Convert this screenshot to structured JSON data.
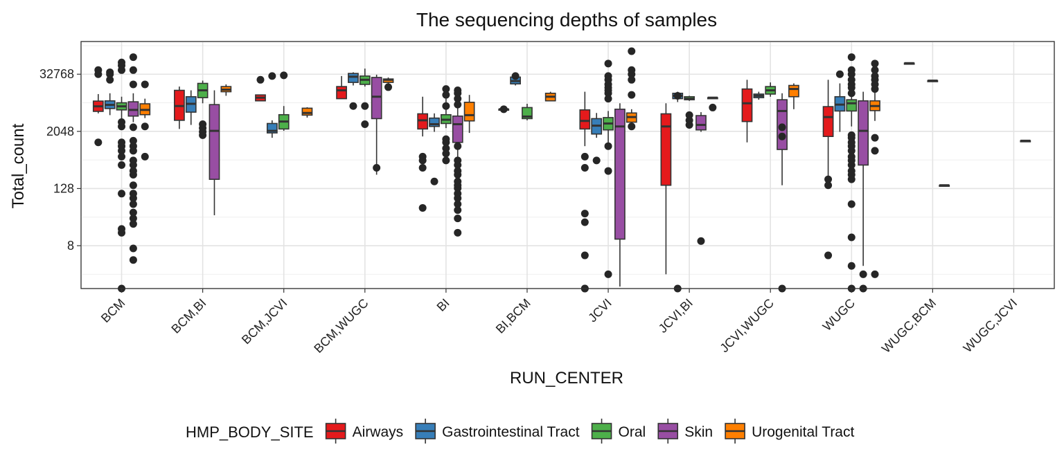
{
  "chart_data": {
    "type": "boxplot",
    "title": "The sequencing depths of samples",
    "xlabel": "RUN_CENTER",
    "ylabel": "Total_count",
    "y_scale": "log2",
    "y_ticks": [
      8,
      128,
      2048,
      32768
    ],
    "y_tick_labels": [
      "8",
      "128",
      "2048",
      "32768"
    ],
    "ylim": [
      1,
      160000
    ],
    "grid": true,
    "legend_position": "bottom",
    "legend": {
      "title": "HMP_BODY_SITE",
      "items": [
        {
          "name": "Airways",
          "color": "#e41a1c"
        },
        {
          "name": "Gastrointestinal Tract",
          "color": "#377eb8"
        },
        {
          "name": "Oral",
          "color": "#4daf4a"
        },
        {
          "name": "Skin",
          "color": "#984ea3"
        },
        {
          "name": "Urogenital Tract",
          "color": "#ff7f00"
        }
      ]
    },
    "categories": [
      "BCM",
      "BCM,BI",
      "BCM,JCVI",
      "BCM,WUGC",
      "BI",
      "BI,BCM",
      "JCVI",
      "JCVI,BI",
      "JCVI,WUGC",
      "WUGC",
      "WUGC,BCM",
      "WUGC,JCVI"
    ],
    "groups": [
      {
        "category": "BCM",
        "boxes": [
          {
            "site": "Airways",
            "min": 4900,
            "q1": 5400,
            "median": 6900,
            "q3": 8900,
            "max": 12500,
            "outliers": [
              1200,
              32768,
              40000
            ]
          },
          {
            "site": "Gastrointestinal Tract",
            "min": 4500,
            "q1": 6200,
            "median": 7400,
            "q3": 9000,
            "max": 13000,
            "outliers": [
              25000,
              32768,
              36000
            ]
          },
          {
            "site": "Oral",
            "min": 3800,
            "q1": 5800,
            "median": 6900,
            "q3": 8200,
            "max": 11000,
            "outliers": [
              1,
              15,
              18,
              100,
              400,
              600,
              800,
              1000,
              1200,
              2600,
              3200,
              40000,
              50000,
              58000
            ]
          },
          {
            "site": "Skin",
            "min": 3200,
            "q1": 4300,
            "median": 5800,
            "q3": 8600,
            "max": 13000,
            "outliers": [
              4,
              7,
              23,
              30,
              40,
              60,
              80,
              100,
              150,
              250,
              300,
              400,
              500,
              800,
              1000,
              1300,
              2500,
              20000,
              40000,
              75000
            ]
          },
          {
            "site": "Urogenital Tract",
            "min": 3900,
            "q1": 4600,
            "median": 5800,
            "q3": 7800,
            "max": 10000,
            "outliers": [
              600,
              2600,
              20000
            ]
          }
        ]
      },
      {
        "category": "BCM,BI",
        "boxes": [
          {
            "site": "Airways",
            "min": 2300,
            "q1": 3500,
            "median": 7000,
            "q3": 15000,
            "max": 18000,
            "outliers": []
          },
          {
            "site": "Gastrointestinal Tract",
            "min": 2800,
            "q1": 5200,
            "median": 7800,
            "q3": 11000,
            "max": 15000,
            "outliers": []
          },
          {
            "site": "Oral",
            "min": 8000,
            "q1": 10500,
            "median": 15000,
            "q3": 21000,
            "max": 24000,
            "outliers": [
              1700,
              2000,
              2400,
              2900
            ]
          },
          {
            "site": "Skin",
            "min": 35,
            "q1": 200,
            "median": 2100,
            "q3": 7500,
            "max": 15000,
            "outliers": []
          },
          {
            "site": "Urogenital Tract",
            "min": 11500,
            "q1": 14000,
            "median": 15500,
            "q3": 18000,
            "max": 20000,
            "outliers": []
          }
        ]
      },
      {
        "category": "BCM,JCVI",
        "boxes": [
          {
            "site": "Airways",
            "min": 9000,
            "q1": 9000,
            "median": 10500,
            "q3": 12000,
            "max": 12000,
            "outliers": [
              25000
            ]
          },
          {
            "site": "Gastrointestinal Tract",
            "min": 1500,
            "q1": 1900,
            "median": 2100,
            "q3": 3000,
            "max": 3500,
            "outliers": [
              30000
            ]
          },
          {
            "site": "Oral",
            "min": 2100,
            "q1": 2300,
            "median": 3300,
            "q3": 4600,
            "max": 7000,
            "outliers": [
              31000
            ]
          },
          {
            "site": "Urogenital Tract",
            "min": 4000,
            "q1": 4500,
            "median": 5000,
            "q3": 6300,
            "max": 6600,
            "outliers": []
          }
        ]
      },
      {
        "category": "BCM,WUGC",
        "boxes": [
          {
            "site": "Airways",
            "min": 10000,
            "q1": 10000,
            "median": 15000,
            "q3": 18000,
            "max": 30000,
            "outliers": []
          },
          {
            "site": "Gastrointestinal Tract",
            "min": 19000,
            "q1": 22000,
            "median": 29000,
            "q3": 34000,
            "max": 36000,
            "outliers": [
              7000
            ]
          },
          {
            "site": "Oral",
            "min": 18000,
            "q1": 20000,
            "median": 25000,
            "q3": 30000,
            "max": 43000,
            "outliers": [
              2900,
              7000
            ]
          },
          {
            "site": "Skin",
            "min": 250,
            "q1": 3800,
            "median": 11000,
            "q3": 28000,
            "max": 32000,
            "outliers": [
              350
            ]
          },
          {
            "site": "Urogenital Tract",
            "min": 20000,
            "q1": 22000,
            "median": 25000,
            "q3": 26000,
            "max": 28000,
            "outliers": [
              17500
            ]
          }
        ]
      },
      {
        "category": "BI",
        "boxes": [
          {
            "site": "Airways",
            "min": 1600,
            "q1": 2300,
            "median": 3500,
            "q3": 4800,
            "max": 11000,
            "outliers": [
              50,
              350,
              500,
              600
            ]
          },
          {
            "site": "Gastrointestinal Tract",
            "min": 2000,
            "q1": 2600,
            "median": 2900,
            "q3": 3900,
            "max": 4900,
            "outliers": [
              180
            ]
          },
          {
            "site": "Oral",
            "min": 2400,
            "q1": 3000,
            "median": 3600,
            "q3": 4600,
            "max": 10000,
            "outliers": [
              500,
              700,
              900,
              1200,
              1400,
              7000,
              12000,
              16000
            ]
          },
          {
            "site": "Skin",
            "min": 200,
            "q1": 1200,
            "median": 2900,
            "q3": 4300,
            "max": 7000,
            "outliers": [
              15,
              30,
              45,
              60,
              80,
              100,
              130,
              150,
              180,
              250,
              300,
              400,
              500,
              1000,
              7500,
              10000,
              13000,
              15000
            ]
          },
          {
            "site": "Urogenital Tract",
            "min": 1900,
            "q1": 3400,
            "median": 4500,
            "q3": 8400,
            "max": 12000,
            "outliers": []
          }
        ]
      },
      {
        "category": "BI,BCM",
        "boxes": [
          {
            "site": "Airways",
            "min": 6000,
            "q1": 6000,
            "median": 6000,
            "q3": 6000,
            "max": 6000,
            "outliers": [
              6000
            ]
          },
          {
            "site": "Gastrointestinal Tract",
            "min": 19000,
            "q1": 20500,
            "median": 23500,
            "q3": 28500,
            "max": 36000,
            "outliers": [
              30000
            ]
          },
          {
            "site": "Oral",
            "min": 3500,
            "q1": 3800,
            "median": 4200,
            "q3": 6500,
            "max": 7800,
            "outliers": []
          },
          {
            "site": "Urogenital Tract",
            "min": 8800,
            "q1": 9000,
            "median": 11000,
            "q3": 13000,
            "max": 14000,
            "outliers": []
          }
        ]
      },
      {
        "category": "JCVI",
        "boxes": [
          {
            "site": "Airways",
            "min": 1000,
            "q1": 2300,
            "median": 3400,
            "q3": 5800,
            "max": 14000,
            "outliers": [
              1,
              1,
              5,
              25,
              38,
              350,
              600
            ]
          },
          {
            "site": "Gastrointestinal Tract",
            "min": 1500,
            "q1": 1800,
            "median": 2700,
            "q3": 3800,
            "max": 5000,
            "outliers": [
              500
            ]
          },
          {
            "site": "Oral",
            "min": 1000,
            "q1": 2200,
            "median": 3000,
            "q3": 4000,
            "max": 5500,
            "outliers": [
              2,
              300,
              1000,
              10000,
              13000,
              15000,
              17000,
              20000,
              25000,
              30000,
              55000
            ]
          },
          {
            "site": "Skin",
            "min": 1.1,
            "q1": 11,
            "median": 2600,
            "q3": 6000,
            "max": 8000,
            "outliers": []
          },
          {
            "site": "Urogenital Tract",
            "min": 2900,
            "q1": 3200,
            "median": 4100,
            "q3": 5000,
            "max": 6000,
            "outliers": [
              2600,
              12000,
              25000,
              32768,
              40000,
              100000
            ]
          }
        ]
      },
      {
        "category": "JCVI,BI",
        "boxes": [
          {
            "site": "Airways",
            "min": 2,
            "q1": 150,
            "median": 2600,
            "q3": 4800,
            "max": 8000,
            "outliers": []
          },
          {
            "site": "Gastrointestinal Tract",
            "min": 8500,
            "q1": 10000,
            "median": 11500,
            "q3": 13000,
            "max": 14000,
            "outliers": [
              1,
              11500
            ]
          },
          {
            "site": "Oral",
            "min": 9000,
            "q1": 9500,
            "median": 10000,
            "q3": 11000,
            "max": 11500,
            "outliers": [
              2800,
              3500,
              4500
            ]
          },
          {
            "site": "Skin",
            "min": 2000,
            "q1": 2200,
            "median": 2800,
            "q3": 4400,
            "max": 5200,
            "outliers": [
              10
            ]
          },
          {
            "site": "Urogenital Tract",
            "min": 10500,
            "q1": 10500,
            "median": 10500,
            "q3": 10500,
            "max": 10500,
            "outliers": [
              6500
            ]
          }
        ]
      },
      {
        "category": "JCVI,WUGC",
        "boxes": [
          {
            "site": "Airways",
            "min": 1200,
            "q1": 3300,
            "median": 8000,
            "q3": 16000,
            "max": 25000,
            "outliers": []
          },
          {
            "site": "Gastrointestinal Tract",
            "min": 9500,
            "q1": 10500,
            "median": 11500,
            "q3": 12500,
            "max": 14000,
            "outliers": []
          },
          {
            "site": "Oral",
            "min": 11000,
            "q1": 12500,
            "median": 15000,
            "q3": 18000,
            "max": 22000,
            "outliers": []
          },
          {
            "site": "Skin",
            "min": 150,
            "q1": 850,
            "median": 5500,
            "q3": 9500,
            "max": 13000,
            "outliers": [
              1,
              1600,
              2500
            ]
          },
          {
            "site": "Urogenital Tract",
            "min": 6000,
            "q1": 11000,
            "median": 16000,
            "q3": 19000,
            "max": 21000,
            "outliers": []
          }
        ]
      },
      {
        "category": "WUGC",
        "boxes": [
          {
            "site": "Airways",
            "min": 180,
            "q1": 1600,
            "median": 4100,
            "q3": 6800,
            "max": 25000,
            "outliers": [
              5,
              150,
              200
            ]
          },
          {
            "site": "Gastrointestinal Tract",
            "min": 2000,
            "q1": 5500,
            "median": 7500,
            "q3": 11000,
            "max": 21000,
            "outliers": [
              32768
            ]
          },
          {
            "site": "Oral",
            "min": 2600,
            "q1": 5500,
            "median": 8000,
            "q3": 9500,
            "max": 12000,
            "outliers": [
              1,
              3,
              12,
              60,
              200,
              250,
              300,
              400,
              500,
              600,
              800,
              1000,
              1200,
              1500,
              1700,
              13000,
              17000,
              20000,
              25000,
              32768,
              40000,
              75000
            ]
          },
          {
            "site": "Skin",
            "min": 3,
            "q1": 400,
            "median": 2100,
            "q3": 9000,
            "max": 14000,
            "outliers": [
              1,
              2
            ]
          },
          {
            "site": "Urogenital Tract",
            "min": 3400,
            "q1": 5600,
            "median": 7000,
            "q3": 9000,
            "max": 14000,
            "outliers": [
              2,
              800,
              1500,
              16000,
              20000,
              25000,
              30000,
              40000,
              55000
            ]
          }
        ]
      },
      {
        "category": "WUGC,BCM",
        "boxes": [
          {
            "site": "Airways",
            "min": 56000,
            "q1": 56000,
            "median": 56000,
            "q3": 56000,
            "max": 56000,
            "outliers": []
          },
          {
            "site": "Oral",
            "min": 24000,
            "q1": 24000,
            "median": 24000,
            "q3": 24000,
            "max": 24000,
            "outliers": []
          },
          {
            "site": "Skin",
            "min": 150,
            "q1": 150,
            "median": 150,
            "q3": 150,
            "max": 150,
            "outliers": []
          }
        ]
      },
      {
        "category": "WUGC,JCVI",
        "boxes": [
          {
            "site": "Skin",
            "min": 1300,
            "q1": 1300,
            "median": 1300,
            "q3": 1300,
            "max": 1300,
            "outliers": []
          }
        ]
      }
    ]
  }
}
